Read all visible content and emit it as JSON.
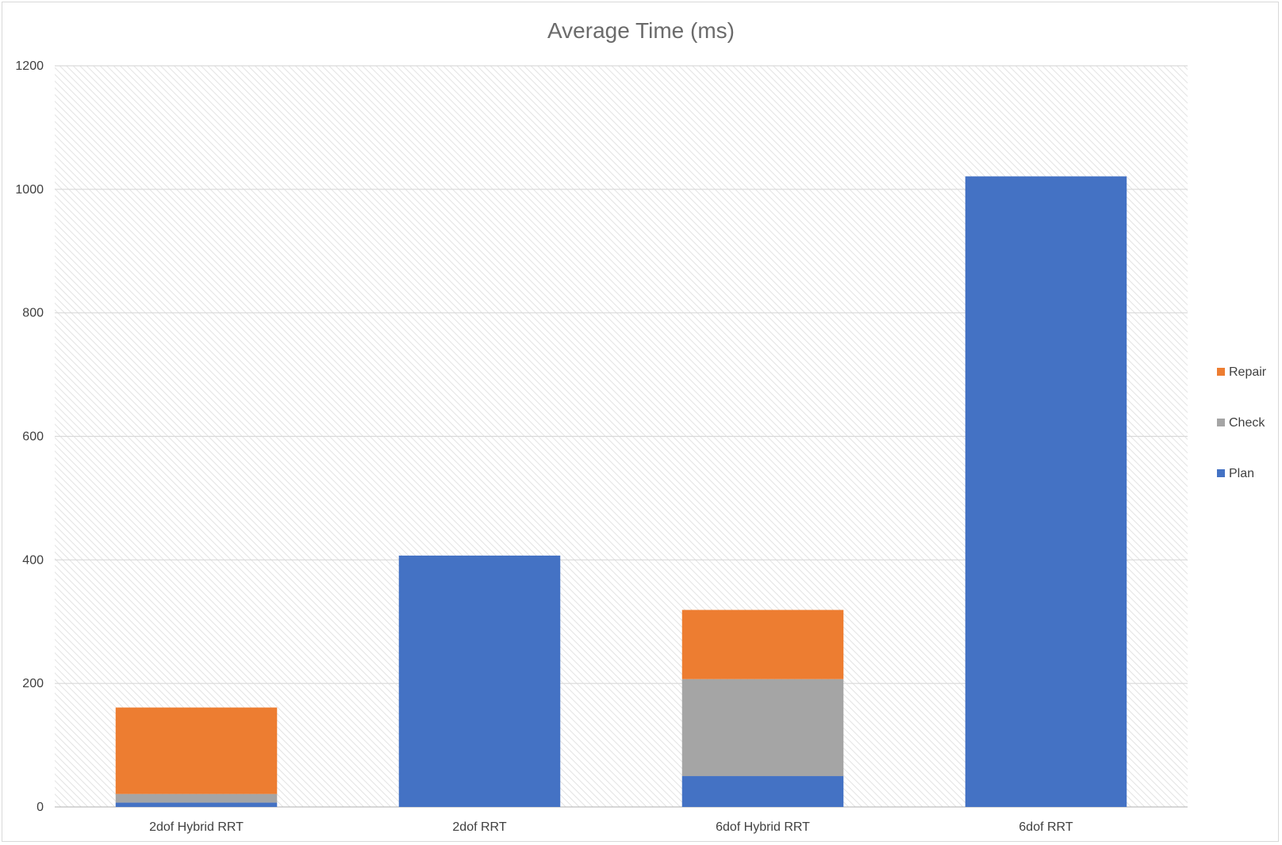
{
  "chart_data": {
    "type": "bar",
    "stacked": true,
    "title": "Average Time (ms)",
    "xlabel": "",
    "ylabel": "",
    "ylim": [
      0,
      1200
    ],
    "yticks": [
      0,
      200,
      400,
      600,
      800,
      1000,
      1200
    ],
    "categories": [
      "2dof Hybrid RRT",
      "2dof RRT",
      "6dof Hybrid RRT",
      "6dof RRT"
    ],
    "series": [
      {
        "name": "Plan",
        "color": "#4472C4",
        "values": [
          7,
          407,
          50,
          1021
        ]
      },
      {
        "name": "Check",
        "color": "#A5A5A5",
        "values": [
          14,
          0,
          157,
          0
        ]
      },
      {
        "name": "Repair",
        "color": "#ED7D31",
        "values": [
          140,
          0,
          112,
          0
        ]
      }
    ],
    "legend": {
      "position": "right",
      "order": [
        "Repair",
        "Check",
        "Plan"
      ]
    },
    "grid": true
  }
}
